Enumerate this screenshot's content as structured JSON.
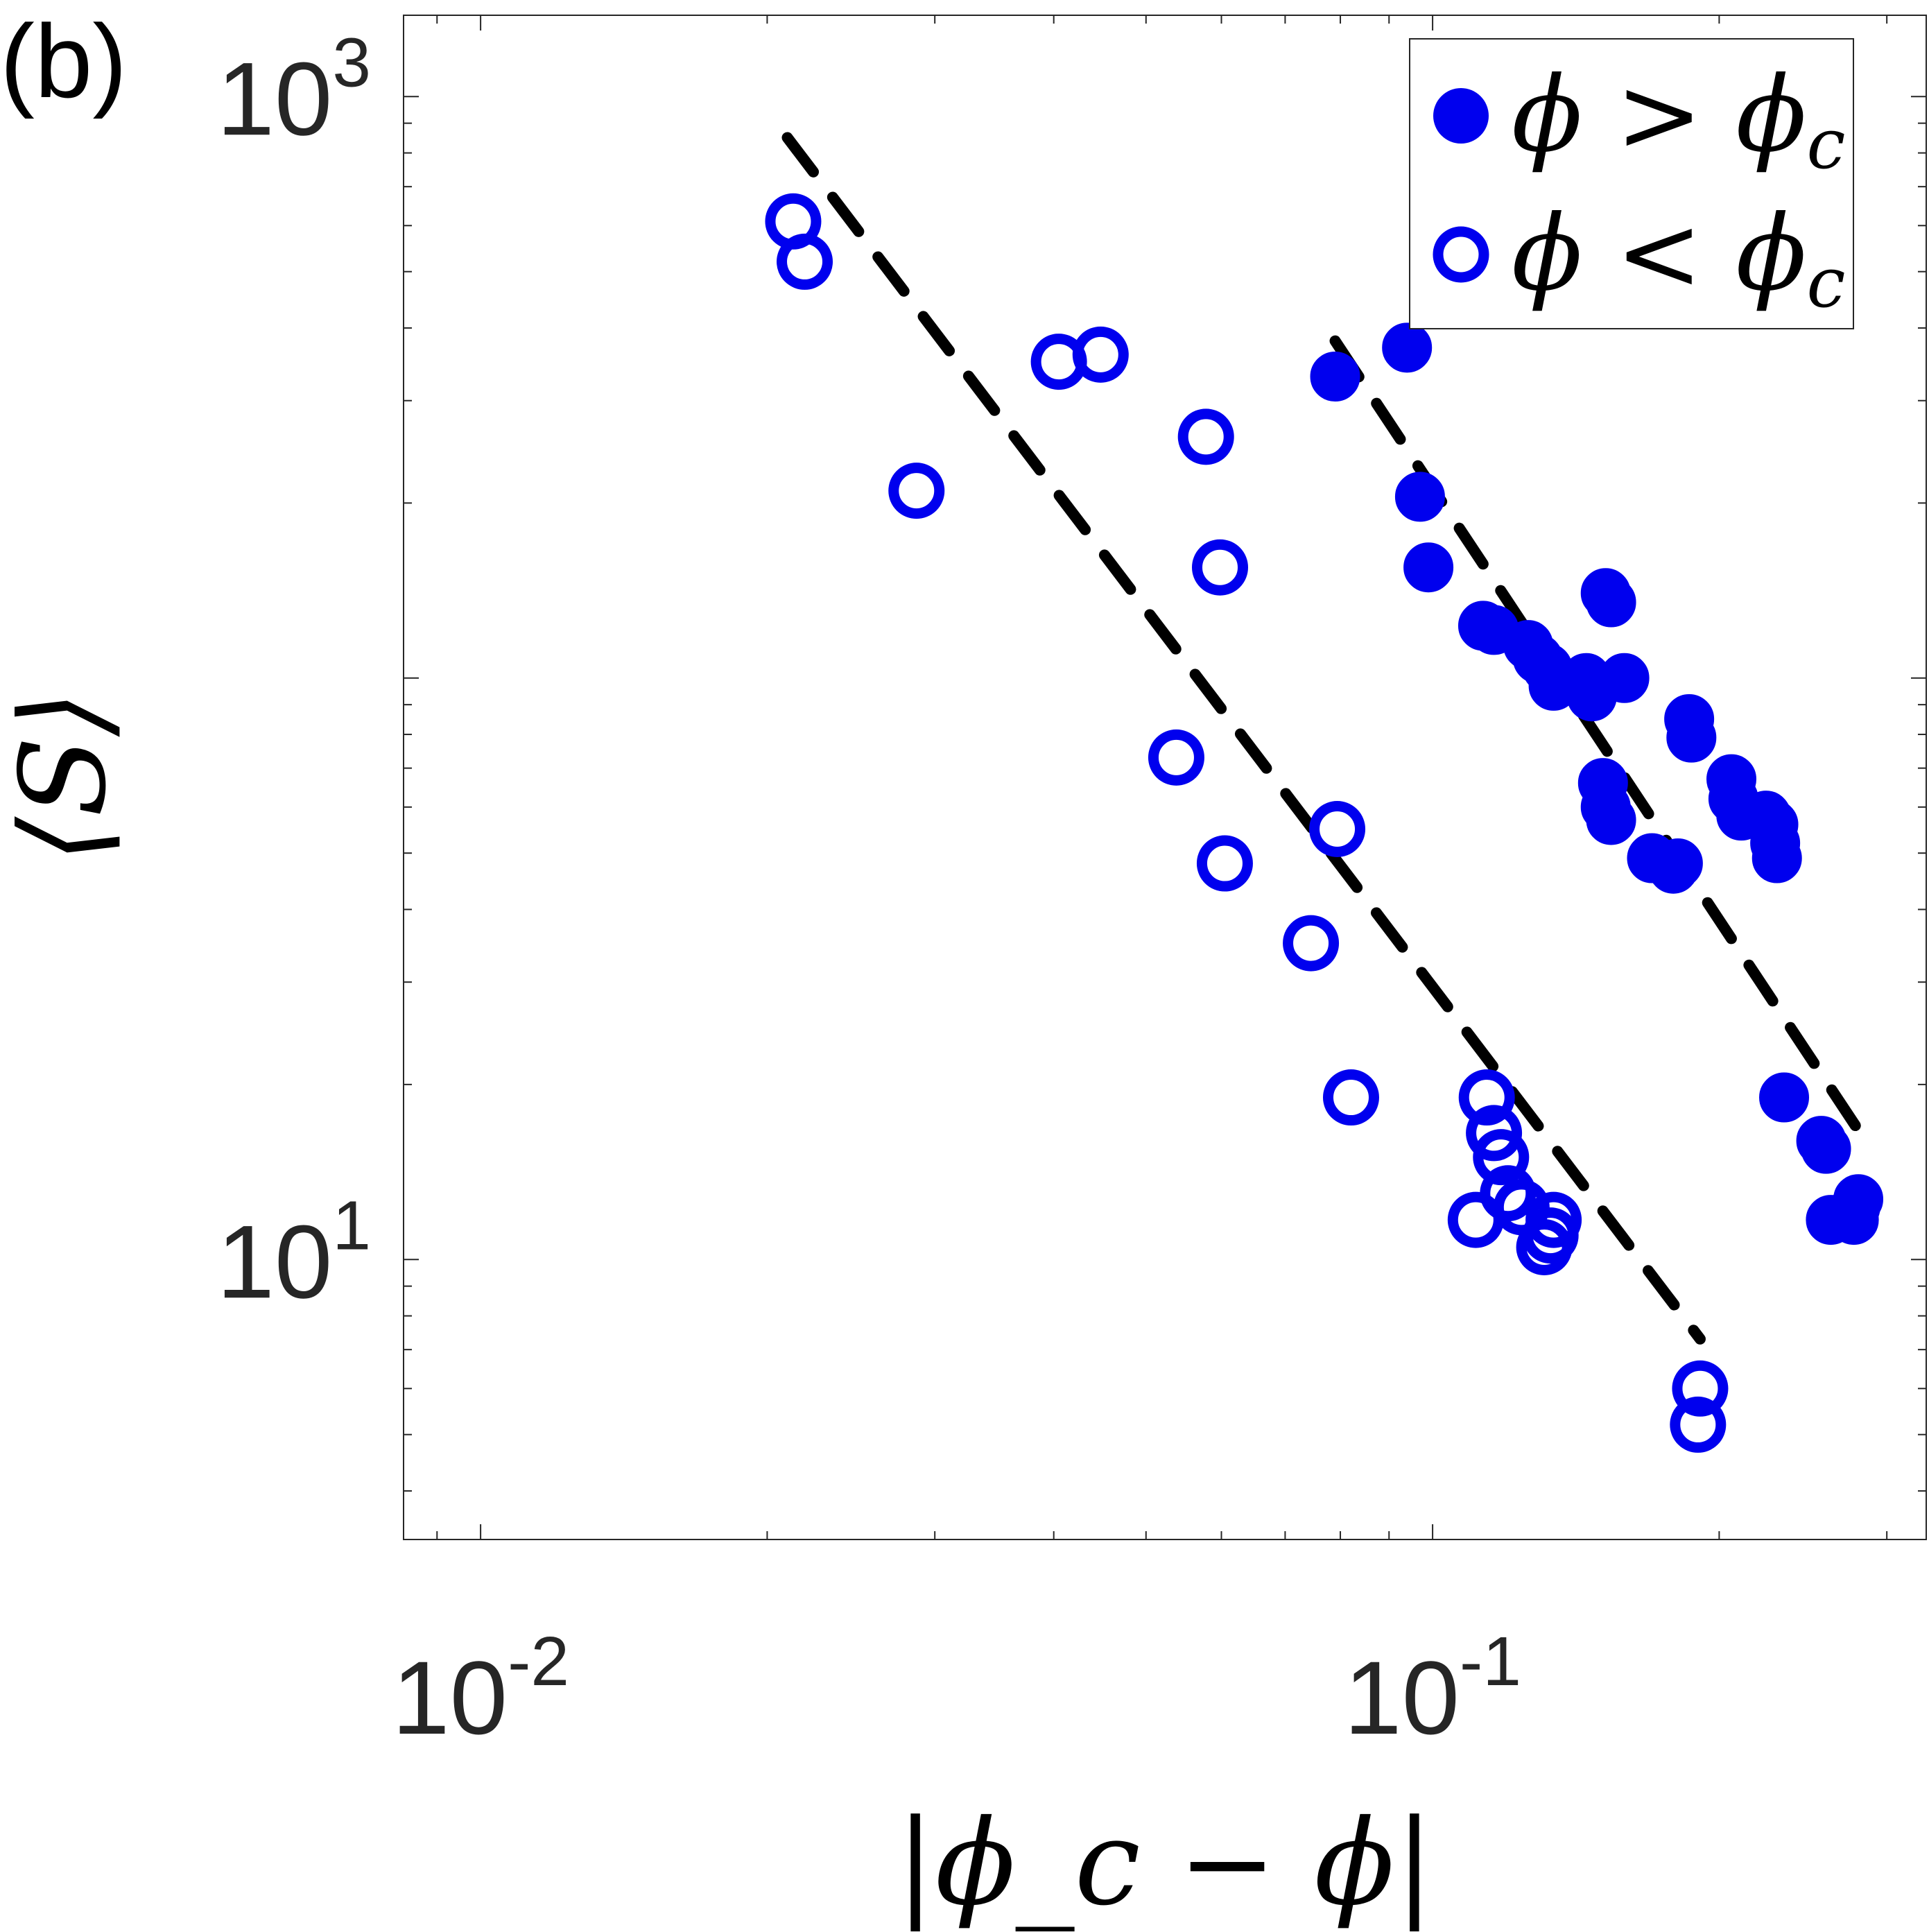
{
  "panel_label": "(b)",
  "chart_data": {
    "type": "scatter",
    "xscale": "log",
    "yscale": "log",
    "xlim": [
      0.0083,
      0.33
    ],
    "ylim": [
      3.3,
      1380
    ],
    "xlabel": "|ϕ_c − ϕ|",
    "ylabel": "⟨S⟩",
    "xtick_labels": [
      {
        "v": 0.01,
        "base": "10",
        "exp": "-2"
      },
      {
        "v": 0.1,
        "base": "10",
        "exp": "-1"
      }
    ],
    "ytick_labels": [
      {
        "v": 10,
        "base": "10",
        "exp": "1"
      },
      {
        "v": 1000,
        "base": "10",
        "exp": "3"
      }
    ],
    "grid": false,
    "legend": {
      "position": "top-right",
      "entries": [
        {
          "marker": "filled-circle",
          "text": "ϕ > ϕ_c",
          "base": "ϕ",
          "op": ">",
          "rhs": "ϕ",
          "sub": "c"
        },
        {
          "marker": "open-circle",
          "text": "ϕ < ϕ_c",
          "base": "ϕ",
          "op": "<",
          "rhs": "ϕ",
          "sub": "c"
        }
      ]
    },
    "colors": {
      "marker": "#0000ee",
      "fit_line": "#000000",
      "axes": "#262626"
    },
    "series": [
      {
        "name": "ϕ > ϕ_c",
        "marker": "filled-circle",
        "points": [
          [
            0.079,
            330
          ],
          [
            0.094,
            370
          ],
          [
            0.097,
            205
          ],
          [
            0.099,
            155
          ],
          [
            0.113,
            123
          ],
          [
            0.116,
            121
          ],
          [
            0.126,
            114
          ],
          [
            0.129,
            108
          ],
          [
            0.132,
            104
          ],
          [
            0.134,
            97
          ],
          [
            0.145,
            100
          ],
          [
            0.147,
            93
          ],
          [
            0.151,
            66
          ],
          [
            0.152,
            60
          ],
          [
            0.154,
            57
          ],
          [
            0.152,
            140
          ],
          [
            0.154,
            135
          ],
          [
            0.159,
            100
          ],
          [
            0.17,
            49
          ],
          [
            0.179,
            47
          ],
          [
            0.181,
            48
          ],
          [
            0.186,
            85
          ],
          [
            0.187,
            79
          ],
          [
            0.206,
            67
          ],
          [
            0.207,
            62
          ],
          [
            0.211,
            58
          ],
          [
            0.224,
            58
          ],
          [
            0.228,
            56
          ],
          [
            0.229,
            52
          ],
          [
            0.23,
            49
          ],
          [
            0.234,
            19
          ],
          [
            0.256,
            16
          ],
          [
            0.259,
            15.5
          ],
          [
            0.262,
            11.7
          ],
          [
            0.277,
            11.7
          ],
          [
            0.278,
            12.3
          ],
          [
            0.28,
            12.7
          ]
        ]
      },
      {
        "name": "ϕ < ϕ_c",
        "marker": "open-circle",
        "points": [
          [
            0.0213,
            610
          ],
          [
            0.0219,
            520
          ],
          [
            0.0287,
            210
          ],
          [
            0.0405,
            350
          ],
          [
            0.0448,
            360
          ],
          [
            0.0578,
            260
          ],
          [
            0.0598,
            155
          ],
          [
            0.0538,
            73
          ],
          [
            0.0605,
            48
          ],
          [
            0.0745,
            35
          ],
          [
            0.0794,
            55
          ],
          [
            0.0821,
            19
          ],
          [
            0.114,
            19
          ],
          [
            0.116,
            16.5
          ],
          [
            0.118,
            15
          ],
          [
            0.111,
            11.7
          ],
          [
            0.12,
            13
          ],
          [
            0.124,
            12.3
          ],
          [
            0.131,
            10.5
          ],
          [
            0.133,
            11
          ],
          [
            0.134,
            11.7
          ],
          [
            0.191,
            6
          ],
          [
            0.19,
            5.2
          ]
        ]
      }
    ],
    "fit_lines": [
      {
        "style": "dashed",
        "from": [
          0.021,
          850
        ],
        "to": [
          0.191,
          7.3
        ]
      },
      {
        "style": "dashed",
        "from": [
          0.079,
          380
        ],
        "to": [
          0.278,
          17
        ]
      }
    ]
  }
}
